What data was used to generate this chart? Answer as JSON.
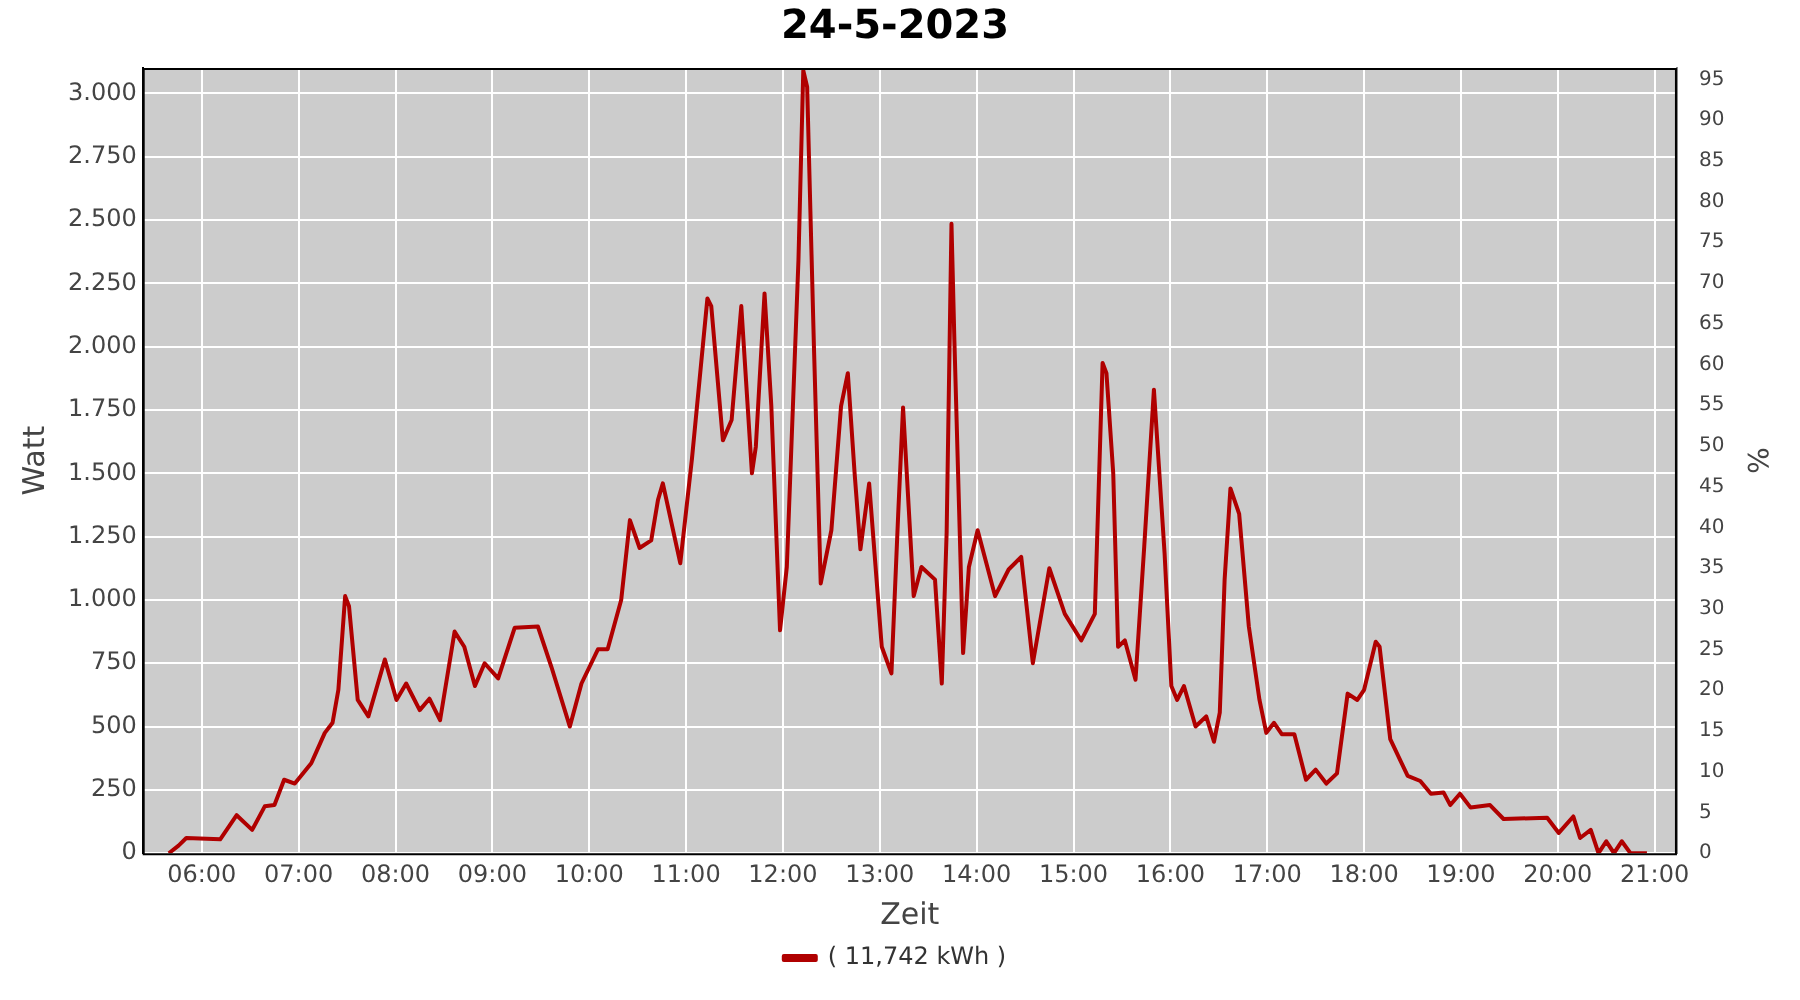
{
  "chart_data": {
    "type": "line",
    "title": "24-5-2023",
    "xlabel": "Zeit",
    "ylabel": "Watt",
    "y2label": "%",
    "xlim": [
      5.39,
      21.23
    ],
    "xticks": [
      {
        "value": 6,
        "label": "06:00"
      },
      {
        "value": 7,
        "label": "07:00"
      },
      {
        "value": 8,
        "label": "08:00"
      },
      {
        "value": 9,
        "label": "09:00"
      },
      {
        "value": 10,
        "label": "10:00"
      },
      {
        "value": 11,
        "label": "11:00"
      },
      {
        "value": 12,
        "label": "12:00"
      },
      {
        "value": 13,
        "label": "13:00"
      },
      {
        "value": 14,
        "label": "14:00"
      },
      {
        "value": 15,
        "label": "15:00"
      },
      {
        "value": 16,
        "label": "16:00"
      },
      {
        "value": 17,
        "label": "17:00"
      },
      {
        "value": 18,
        "label": "18:00"
      },
      {
        "value": 19,
        "label": "19:00"
      },
      {
        "value": 20,
        "label": "20:00"
      },
      {
        "value": 21,
        "label": "21:00"
      }
    ],
    "ylim": [
      0,
      3100
    ],
    "yticks": [
      0,
      {
        "value": 250,
        "label": "250"
      },
      {
        "value": 500,
        "label": "500"
      },
      {
        "value": 750,
        "label": "750"
      },
      {
        "value": 1000,
        "label": "1.000"
      },
      {
        "value": 1250,
        "label": "1.250"
      },
      {
        "value": 1500,
        "label": "1.500"
      },
      {
        "value": 1750,
        "label": "1.750"
      },
      {
        "value": 2000,
        "label": "2.000"
      },
      {
        "value": 2250,
        "label": "2.250"
      },
      {
        "value": 2500,
        "label": "2.500"
      },
      {
        "value": 2750,
        "label": "2.750"
      },
      {
        "value": 3000,
        "label": "3.000"
      }
    ],
    "y2lim": [
      0,
      96.4
    ],
    "y2ticks": [
      0,
      5,
      10,
      15,
      20,
      25,
      30,
      35,
      40,
      45,
      50,
      55,
      60,
      65,
      70,
      75,
      80,
      85,
      90,
      95
    ],
    "grid": true,
    "legend": "bottom",
    "marker": "none",
    "line_style": "solid",
    "series": [
      {
        "name": "( 11,742 kWh )",
        "color": "#b00000",
        "x": [
          5.66,
          5.76,
          5.84,
          6.19,
          6.36,
          6.52,
          6.65,
          6.75,
          6.85,
          6.96,
          7.13,
          7.27,
          7.35,
          7.41,
          7.48,
          7.52,
          7.61,
          7.72,
          7.89,
          8.01,
          8.11,
          8.25,
          8.35,
          8.46,
          8.61,
          8.71,
          8.82,
          8.92,
          9.06,
          9.23,
          9.47,
          9.61,
          9.8,
          9.92,
          10.09,
          10.19,
          10.33,
          10.42,
          10.52,
          10.64,
          10.71,
          10.76,
          10.94,
          11.06,
          11.22,
          11.26,
          11.38,
          11.47,
          11.57,
          11.68,
          11.72,
          11.81,
          11.88,
          11.97,
          12.04,
          12.16,
          12.21,
          12.25,
          12.32,
          12.39,
          12.5,
          12.6,
          12.67,
          12.74,
          12.8,
          12.89,
          13.02,
          13.12,
          13.19,
          13.24,
          13.35,
          13.43,
          13.57,
          13.64,
          13.69,
          13.74,
          13.77,
          13.86,
          13.92,
          14.01,
          14.19,
          14.33,
          14.46,
          14.58,
          14.75,
          14.91,
          15.08,
          15.22,
          15.3,
          15.34,
          15.41,
          15.46,
          15.53,
          15.64,
          15.73,
          15.83,
          15.94,
          16.01,
          16.07,
          16.14,
          16.26,
          16.37,
          16.45,
          16.51,
          16.56,
          16.62,
          16.71,
          16.81,
          16.92,
          16.99,
          17.07,
          17.15,
          17.28,
          17.4,
          17.5,
          17.61,
          17.72,
          17.83,
          17.93,
          18,
          18.12,
          18.16,
          18.27,
          18.45,
          18.58,
          18.69,
          18.82,
          18.89,
          18.99,
          19.1,
          19.3,
          19.44,
          19.89,
          20.01,
          20.16,
          20.23,
          20.34,
          20.42,
          20.5,
          20.58,
          20.66,
          20.75,
          20.92
        ],
        "values": [
          0,
          30,
          60,
          55,
          150,
          92,
          185,
          190,
          290,
          275,
          355,
          475,
          515,
          645,
          1015,
          975,
          605,
          540,
          765,
          605,
          670,
          565,
          610,
          525,
          875,
          815,
          660,
          750,
          690,
          890,
          895,
          735,
          500,
          670,
          805,
          805,
          1000,
          1315,
          1205,
          1235,
          1395,
          1460,
          1145,
          1555,
          2190,
          2160,
          1630,
          1710,
          2160,
          1500,
          1605,
          2210,
          1765,
          880,
          1130,
          2340,
          3090,
          3025,
          2000,
          1065,
          1275,
          1765,
          1895,
          1500,
          1200,
          1460,
          815,
          710,
          1340,
          1760,
          1015,
          1130,
          1080,
          670,
          1265,
          2485,
          2025,
          790,
          1130,
          1275,
          1015,
          1120,
          1170,
          750,
          1125,
          945,
          840,
          945,
          1935,
          1895,
          1500,
          815,
          840,
          685,
          1210,
          1830,
          1185,
          660,
          605,
          660,
          500,
          540,
          440,
          555,
          1080,
          1440,
          1340,
          895,
          605,
          475,
          515,
          470,
          470,
          290,
          330,
          275,
          315,
          630,
          605,
          645,
          835,
          815,
          450,
          305,
          285,
          235,
          240,
          190,
          235,
          180,
          190,
          135,
          140,
          80,
          145,
          60,
          92,
          0,
          47,
          0,
          47,
          0,
          0
        ]
      }
    ]
  }
}
